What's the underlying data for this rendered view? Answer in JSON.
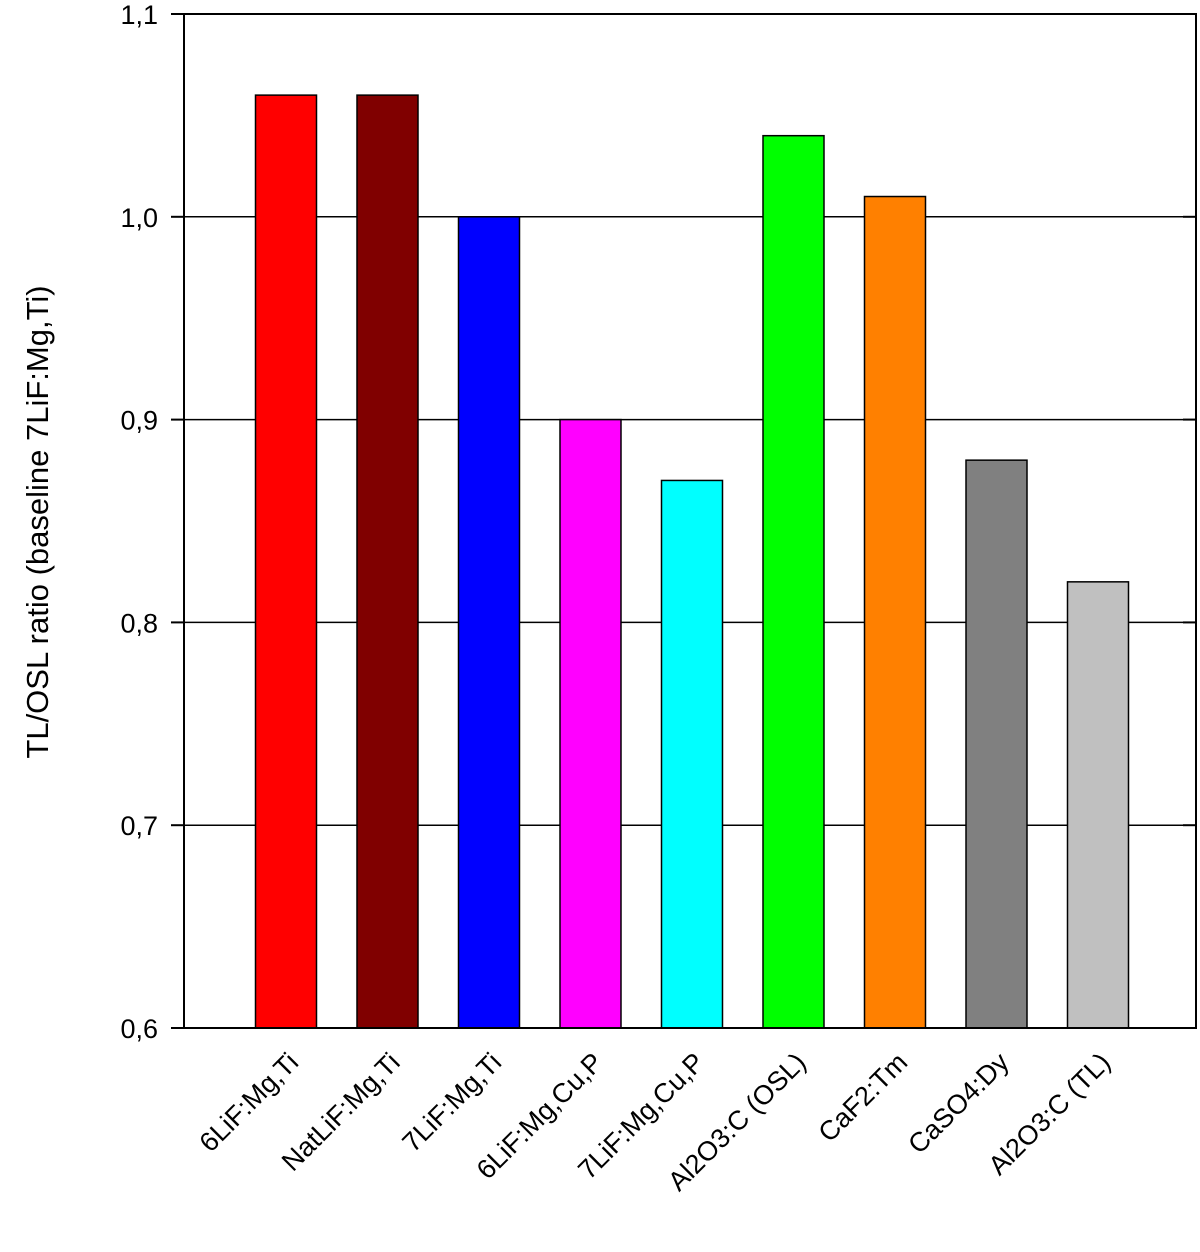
{
  "chart_data": {
    "type": "bar",
    "title": "",
    "xlabel": "",
    "ylabel": "TL/OSL ratio (baseline 7LiF:Mg,Ti)",
    "ylim": [
      0.6,
      1.1
    ],
    "grid": "horizontal",
    "yticks": [
      0.6,
      0.7,
      0.8,
      0.9,
      1.0,
      1.1
    ],
    "ytick_labels": [
      "0,6",
      "0,7",
      "0,8",
      "0,9",
      "1,0",
      "1,1"
    ],
    "categories": [
      "6LiF:Mg,Ti",
      "NatLiF:Mg,Ti",
      "7LiF:Mg,Ti",
      "6LiF:Mg,Cu,P",
      "7LiF:Mg,Cu,P",
      "Al2O3:C (OSL)",
      "CaF2:Tm",
      "CaSO4:Dy",
      "Al2O3:C (TL)"
    ],
    "values": [
      1.06,
      1.06,
      1.0,
      0.9,
      0.87,
      1.04,
      1.01,
      0.88,
      0.82
    ],
    "colors": [
      "#ff0000",
      "#800000",
      "#0000ff",
      "#ff00ff",
      "#00ffff",
      "#00ff00",
      "#ff8000",
      "#808080",
      "#c0c0c0"
    ]
  }
}
